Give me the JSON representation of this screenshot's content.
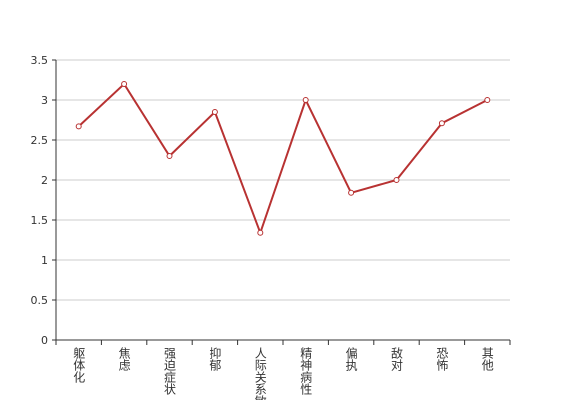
{
  "chart_data": {
    "type": "line",
    "categories": [
      "躯体化",
      "焦虑",
      "强迫症状",
      "抑郁",
      "人际关系敏感",
      "精神病性",
      "偏执",
      "敌对",
      "恐怖",
      "其他"
    ],
    "series": [
      {
        "color": "#b83232",
        "values": [
          2.67,
          3.2,
          2.3,
          2.85,
          1.34,
          3.0,
          1.84,
          2.0,
          2.71,
          3.0
        ]
      }
    ],
    "ylim": [
      0,
      3.5
    ],
    "yticks": [
      0,
      0.5,
      1,
      1.5,
      2,
      2.5,
      3,
      3.5
    ],
    "grid": true
  }
}
